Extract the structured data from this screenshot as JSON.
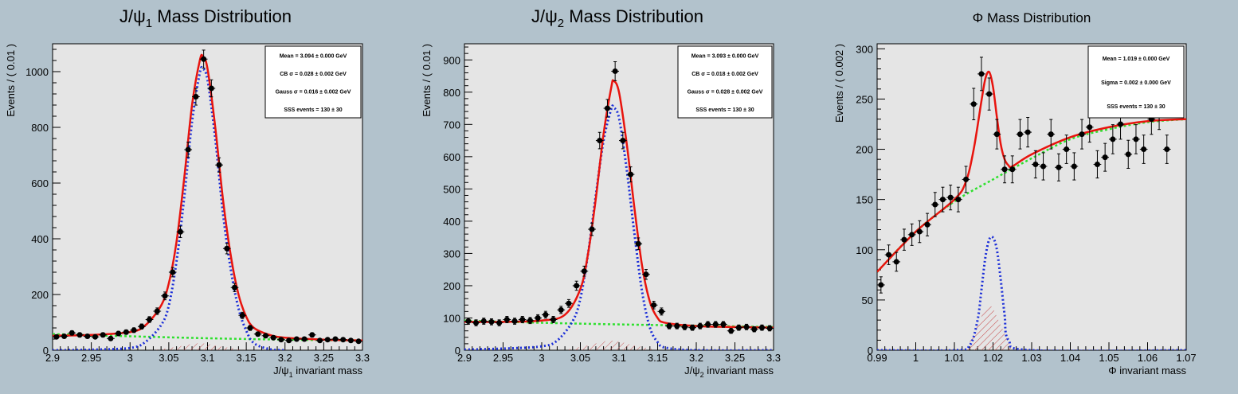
{
  "colors": {
    "canvas_bg": "#b2c2cc",
    "pad_bg": "#e5e5e5",
    "total_fit": "#e8140e",
    "signal": "#1c2fd8",
    "background": "#2fe02f",
    "hatch": "#c85050",
    "points": "#000000"
  },
  "chart_data": [
    {
      "type": "scatter",
      "title_main": "J/ψ",
      "title_sub": "1",
      "title_rest": " Mass Distribution",
      "xlabel_main": "J/ψ",
      "xlabel_sub": "1",
      "xlabel_rest": " invariant mass",
      "ylabel": "Events / ( 0.01 )",
      "xlim": [
        2.9,
        3.3
      ],
      "ylim": [
        0,
        1100
      ],
      "xticks": [
        "2.9",
        "2.95",
        "3",
        "3.05",
        "3.1",
        "3.15",
        "3.2",
        "3.25",
        "3.3"
      ],
      "yticks": [
        "0",
        "200",
        "400",
        "600",
        "800",
        "1000"
      ],
      "legend": [
        "Mean = 3.094 ± 0.000 GeV",
        "CB σ = 0.028 ± 0.002 GeV",
        "Gauss σ = 0.016 ± 0.002 GeV",
        "SSS events = 130 ± 30"
      ],
      "legend_position": "top-right",
      "series": [
        {
          "kind": "data_points",
          "x": [
            2.905,
            2.915,
            2.925,
            2.935,
            2.945,
            2.955,
            2.965,
            2.975,
            2.985,
            2.995,
            3.005,
            3.015,
            3.025,
            3.035,
            3.045,
            3.055,
            3.065,
            3.075,
            3.085,
            3.095,
            3.105,
            3.115,
            3.125,
            3.135,
            3.145,
            3.155,
            3.165,
            3.175,
            3.185,
            3.195,
            3.205,
            3.215,
            3.225,
            3.235,
            3.245,
            3.255,
            3.265,
            3.275,
            3.285,
            3.295
          ],
          "y": [
            48,
            50,
            62,
            55,
            50,
            48,
            55,
            42,
            60,
            65,
            72,
            85,
            110,
            140,
            195,
            280,
            425,
            720,
            910,
            1045,
            940,
            665,
            365,
            225,
            125,
            80,
            58,
            52,
            45,
            38,
            35,
            40,
            40,
            55,
            35,
            38,
            40,
            38,
            35,
            32
          ]
        },
        {
          "kind": "total_fit",
          "x": [
            2.9,
            2.95,
            3.0,
            3.02,
            3.04,
            3.05,
            3.06,
            3.07,
            3.08,
            3.09,
            3.094,
            3.1,
            3.11,
            3.12,
            3.13,
            3.14,
            3.15,
            3.16,
            3.18,
            3.2,
            3.25,
            3.3
          ],
          "y": [
            52,
            55,
            65,
            90,
            160,
            240,
            390,
            620,
            880,
            1040,
            1055,
            1010,
            800,
            540,
            340,
            200,
            120,
            80,
            55,
            45,
            38,
            35
          ]
        },
        {
          "kind": "signal",
          "x": [
            2.9,
            2.95,
            3.0,
            3.02,
            3.04,
            3.05,
            3.06,
            3.07,
            3.08,
            3.09,
            3.094,
            3.1,
            3.11,
            3.12,
            3.13,
            3.14,
            3.15,
            3.16,
            3.18,
            3.2
          ],
          "y": [
            0,
            2,
            8,
            30,
            90,
            160,
            320,
            550,
            820,
            995,
            1010,
            970,
            760,
            490,
            290,
            150,
            70,
            25,
            4,
            0
          ]
        },
        {
          "kind": "background",
          "x": [
            2.9,
            3.0,
            3.1,
            3.2,
            3.3
          ],
          "y": [
            58,
            50,
            43,
            38,
            35
          ]
        },
        {
          "kind": "hatch",
          "x": [
            3.03,
            3.06,
            3.09,
            3.12,
            3.15
          ],
          "y": [
            0,
            12,
            25,
            12,
            0
          ]
        }
      ]
    },
    {
      "type": "scatter",
      "title_main": "J/ψ",
      "title_sub": "2",
      "title_rest": " Mass Distribution",
      "xlabel_main": "J/ψ",
      "xlabel_sub": "2",
      "xlabel_rest": " invariant mass",
      "ylabel": "Events / ( 0.01 )",
      "xlim": [
        2.9,
        3.3
      ],
      "ylim": [
        0,
        950
      ],
      "xticks": [
        "2.9",
        "2.95",
        "3",
        "3.05",
        "3.1",
        "3.15",
        "3.2",
        "3.25",
        "3.3"
      ],
      "yticks": [
        "0",
        "100",
        "200",
        "300",
        "400",
        "500",
        "600",
        "700",
        "800",
        "900"
      ],
      "legend": [
        "Mean = 3.093 ± 0.000 GeV",
        "CB σ = 0.018 ± 0.002 GeV",
        "Gauss σ = 0.028 ± 0.002 GeV",
        "SSS events = 130 ± 30"
      ],
      "legend_position": "top-right",
      "series": [
        {
          "kind": "data_points",
          "x": [
            2.905,
            2.915,
            2.925,
            2.935,
            2.945,
            2.955,
            2.965,
            2.975,
            2.985,
            2.995,
            3.005,
            3.015,
            3.025,
            3.035,
            3.045,
            3.055,
            3.065,
            3.075,
            3.085,
            3.095,
            3.105,
            3.115,
            3.125,
            3.135,
            3.145,
            3.155,
            3.165,
            3.175,
            3.185,
            3.195,
            3.205,
            3.215,
            3.225,
            3.235,
            3.245,
            3.255,
            3.265,
            3.275,
            3.285,
            3.295
          ],
          "y": [
            90,
            85,
            90,
            88,
            85,
            95,
            90,
            95,
            92,
            100,
            110,
            95,
            125,
            145,
            200,
            245,
            375,
            650,
            750,
            865,
            650,
            545,
            330,
            235,
            140,
            120,
            75,
            75,
            72,
            70,
            75,
            80,
            80,
            80,
            60,
            70,
            72,
            65,
            70,
            68
          ]
        },
        {
          "kind": "total_fit",
          "x": [
            2.9,
            2.95,
            3.0,
            3.03,
            3.05,
            3.06,
            3.07,
            3.08,
            3.09,
            3.093,
            3.1,
            3.11,
            3.12,
            3.13,
            3.14,
            3.15,
            3.16,
            3.2,
            3.25,
            3.3
          ],
          "y": [
            88,
            88,
            92,
            110,
            190,
            300,
            470,
            670,
            815,
            835,
            800,
            640,
            440,
            260,
            150,
            100,
            85,
            75,
            72,
            70
          ]
        },
        {
          "kind": "signal",
          "x": [
            2.9,
            2.95,
            3.0,
            3.02,
            3.04,
            3.05,
            3.06,
            3.07,
            3.08,
            3.09,
            3.093,
            3.1,
            3.11,
            3.12,
            3.13,
            3.14,
            3.15,
            3.16,
            3.2,
            3.3
          ],
          "y": [
            2,
            5,
            12,
            30,
            90,
            160,
            300,
            480,
            650,
            748,
            752,
            720,
            560,
            360,
            180,
            70,
            25,
            8,
            0,
            0
          ]
        },
        {
          "kind": "background",
          "x": [
            2.9,
            3.0,
            3.1,
            3.2,
            3.3
          ],
          "y": [
            92,
            85,
            80,
            76,
            72
          ]
        },
        {
          "kind": "hatch",
          "x": [
            3.03,
            3.06,
            3.09,
            3.12,
            3.15
          ],
          "y": [
            0,
            15,
            30,
            15,
            0
          ]
        }
      ]
    },
    {
      "type": "scatter",
      "title_main": "Φ",
      "title_sub": "",
      "title_rest": " Mass Distribution",
      "xlabel_main": "Φ",
      "xlabel_sub": "",
      "xlabel_rest": " invariant mass",
      "ylabel": "Events / ( 0.002 )",
      "xlim": [
        0.99,
        1.07
      ],
      "ylim": [
        0,
        305
      ],
      "xticks": [
        "0.99",
        "1",
        "1.01",
        "1.02",
        "1.03",
        "1.04",
        "1.05",
        "1.06",
        "1.07"
      ],
      "yticks": [
        "0",
        "50",
        "100",
        "150",
        "200",
        "250",
        "300"
      ],
      "legend": [
        "Mean = 1.019 ± 0.000 GeV",
        "Sigma = 0.002 ± 0.000 GeV",
        "SSS events = 130 ± 30"
      ],
      "legend_position": "top-right",
      "series": [
        {
          "kind": "data_points",
          "x": [
            0.991,
            0.993,
            0.995,
            0.997,
            0.999,
            1.001,
            1.003,
            1.005,
            1.007,
            1.009,
            1.011,
            1.013,
            1.015,
            1.017,
            1.019,
            1.021,
            1.023,
            1.025,
            1.027,
            1.029,
            1.031,
            1.033,
            1.035,
            1.037,
            1.039,
            1.041,
            1.043,
            1.045,
            1.047,
            1.049,
            1.051,
            1.053,
            1.055,
            1.057,
            1.059,
            1.061,
            1.063,
            1.065
          ],
          "y": [
            65,
            95,
            88,
            110,
            115,
            118,
            125,
            145,
            150,
            152,
            150,
            170,
            245,
            275,
            255,
            215,
            180,
            180,
            215,
            217,
            185,
            183,
            215,
            182,
            200,
            183,
            215,
            222,
            185,
            192,
            210,
            225,
            195,
            210,
            200,
            230,
            235,
            200
          ]
        },
        {
          "kind": "total_fit",
          "x": [
            0.99,
            1.0,
            1.01,
            1.013,
            1.015,
            1.017,
            1.018,
            1.019,
            1.02,
            1.021,
            1.022,
            1.023,
            1.024,
            1.025,
            1.03,
            1.04,
            1.05,
            1.06,
            1.07
          ],
          "y": [
            78,
            118,
            150,
            168,
            200,
            248,
            270,
            277,
            262,
            232,
            205,
            190,
            184,
            183,
            195,
            212,
            222,
            228,
            230
          ]
        },
        {
          "kind": "signal",
          "x": [
            0.99,
            1.01,
            1.014,
            1.016,
            1.017,
            1.018,
            1.019,
            1.02,
            1.021,
            1.022,
            1.023,
            1.024,
            1.03,
            1.07
          ],
          "y": [
            0,
            0,
            5,
            30,
            60,
            92,
            110,
            112,
            100,
            70,
            35,
            10,
            0,
            0
          ]
        },
        {
          "kind": "background",
          "x": [
            0.99,
            1.0,
            1.01,
            1.02,
            1.03,
            1.04,
            1.05,
            1.06,
            1.07
          ],
          "y": [
            78,
            118,
            148,
            170,
            191,
            210,
            220,
            227,
            230
          ]
        },
        {
          "kind": "hatch",
          "x": [
            1.013,
            1.016,
            1.019,
            1.022,
            1.025
          ],
          "y": [
            0,
            25,
            45,
            25,
            0
          ]
        }
      ]
    }
  ]
}
